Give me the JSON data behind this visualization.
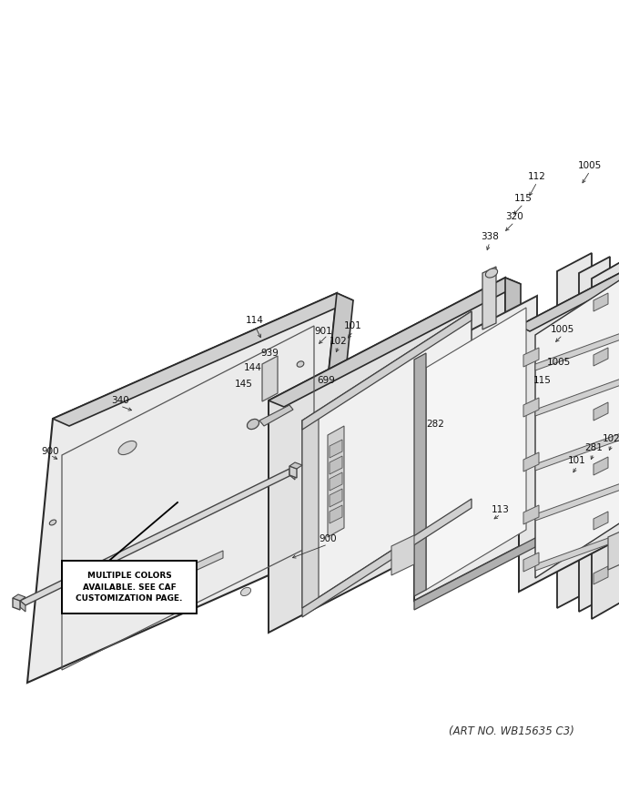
{
  "background_color": "#ffffff",
  "art_no": "(ART NO. WB15635 C3)",
  "note_text": "MULTIPLE COLORS\nAVAILABLE. SEE CAF\nCUSTOMIZATION PAGE.",
  "line_color": "#2a2a2a",
  "fill_light": "#e8e8e8",
  "fill_mid": "#d4d4d4",
  "fill_dark": "#c0c0c0",
  "fill_white": "#f5f5f5"
}
